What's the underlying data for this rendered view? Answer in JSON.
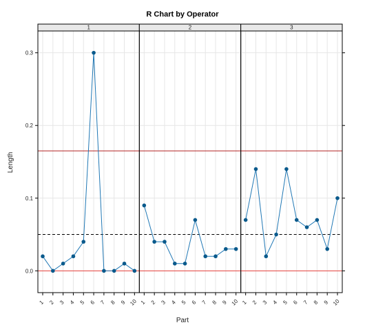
{
  "chart_data": {
    "type": "line",
    "title": "R Chart by Operator",
    "xlabel": "Part",
    "ylabel": "Length",
    "ylim": [
      -0.03,
      0.33
    ],
    "yticks": [
      "0.0",
      "0.1",
      "0.2",
      "0.3"
    ],
    "categories": [
      "1",
      "2",
      "3",
      "4",
      "5",
      "6",
      "7",
      "8",
      "9",
      "10"
    ],
    "center_line": 0.05,
    "upper_control_limit": 0.165,
    "lower_control_limit": 0.0,
    "grid": true,
    "colors": {
      "series": "#1f77b4",
      "marker": "#0a5a8c",
      "limit": "#b22222",
      "lcl": "#e8413c",
      "center": "#000000",
      "grid": "#e6e6e6",
      "strip_bg": "#e8e8e8"
    },
    "panels": [
      {
        "strip": "1",
        "values": [
          0.02,
          0.0,
          0.01,
          0.02,
          0.04,
          0.3,
          0.0,
          0.0,
          0.01,
          0.0
        ]
      },
      {
        "strip": "2",
        "values": [
          0.09,
          0.04,
          0.04,
          0.01,
          0.01,
          0.07,
          0.02,
          0.02,
          0.03,
          0.03
        ]
      },
      {
        "strip": "3",
        "values": [
          0.07,
          0.14,
          0.02,
          0.05,
          0.14,
          0.07,
          0.06,
          0.07,
          0.03,
          0.1
        ]
      }
    ]
  }
}
